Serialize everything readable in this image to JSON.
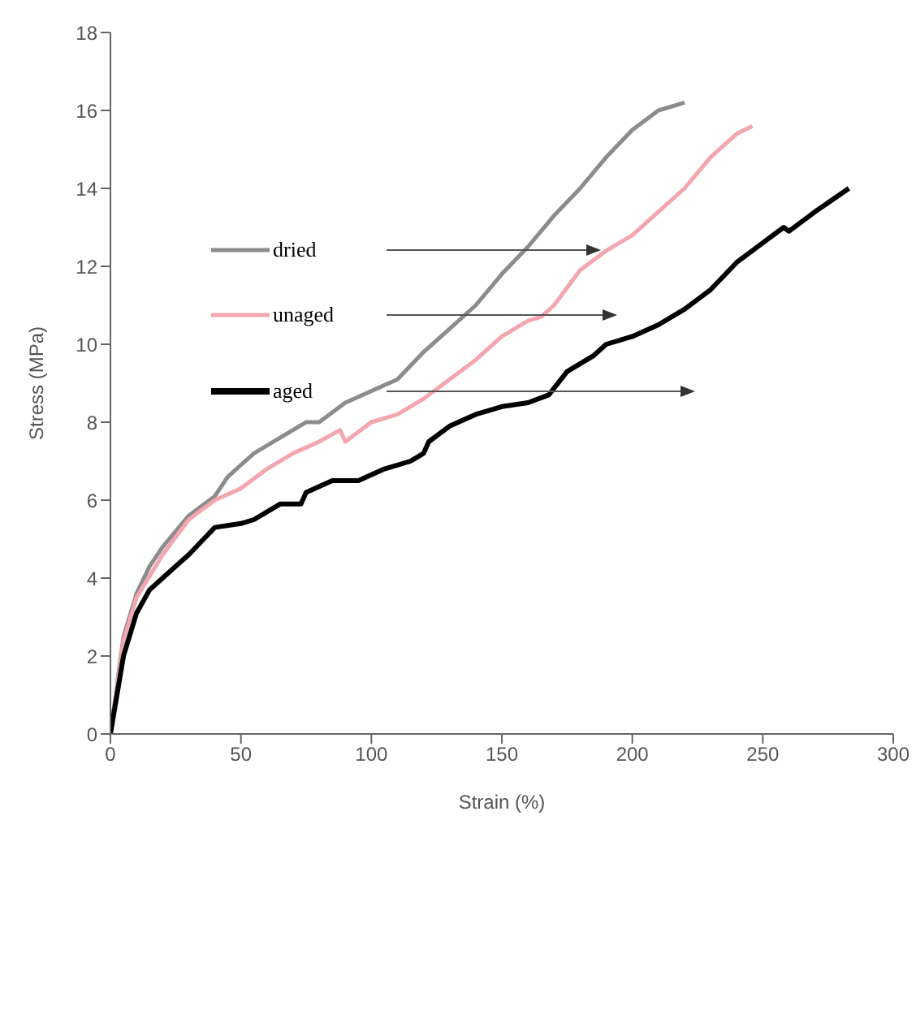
{
  "chart_data": {
    "type": "line",
    "xlabel": "Strain (%)",
    "ylabel": "Stress (MPa)",
    "xlim": [
      0,
      300
    ],
    "xticks": [
      0,
      50,
      100,
      150,
      200,
      250,
      300
    ],
    "ylim": [
      0,
      18
    ],
    "yticks": [
      0,
      2,
      4,
      6,
      8,
      10,
      12,
      14,
      16,
      18
    ],
    "grid": false,
    "legend": "top left",
    "marker": "none",
    "line_style": "solid",
    "series": [
      {
        "name": "dried",
        "color": "#8c8c8c",
        "x": [
          0,
          5,
          10,
          15,
          20,
          30,
          40,
          45,
          55,
          65,
          75,
          80,
          90,
          100,
          110,
          120,
          130,
          140,
          150,
          160,
          170,
          180,
          190,
          200,
          210,
          220
        ],
        "values": [
          0,
          2.5,
          3.6,
          4.3,
          4.8,
          5.6,
          6.1,
          6.6,
          7.2,
          7.6,
          8.0,
          8.0,
          8.5,
          8.8,
          9.1,
          9.8,
          10.4,
          11.0,
          11.8,
          12.5,
          13.3,
          14.0,
          14.8,
          15.5,
          16.0,
          16.2
        ]
      },
      {
        "name": "unaged",
        "color": "#f4a6ae",
        "x": [
          0,
          5,
          10,
          20,
          30,
          40,
          50,
          60,
          70,
          80,
          88,
          90,
          100,
          110,
          120,
          130,
          140,
          150,
          160,
          165,
          170,
          180,
          190,
          200,
          210,
          220,
          230,
          240,
          246
        ],
        "values": [
          0,
          2.4,
          3.5,
          4.6,
          5.5,
          6.0,
          6.3,
          6.8,
          7.2,
          7.5,
          7.8,
          7.5,
          8.0,
          8.2,
          8.6,
          9.1,
          9.6,
          10.2,
          10.6,
          10.7,
          11.0,
          11.9,
          12.4,
          12.8,
          13.4,
          14.0,
          14.8,
          15.4,
          15.6
        ]
      },
      {
        "name": "aged",
        "color": "#000000",
        "x": [
          0,
          5,
          10,
          15,
          20,
          25,
          30,
          40,
          50,
          55,
          65,
          73,
          75,
          85,
          95,
          105,
          115,
          120,
          122,
          130,
          140,
          150,
          160,
          168,
          175,
          185,
          190,
          200,
          210,
          220,
          230,
          240,
          250,
          258,
          260,
          270,
          283
        ],
        "values": [
          0,
          2.0,
          3.1,
          3.7,
          4.0,
          4.3,
          4.6,
          5.3,
          5.4,
          5.5,
          5.9,
          5.9,
          6.2,
          6.5,
          6.5,
          6.8,
          7.0,
          7.2,
          7.5,
          7.9,
          8.2,
          8.4,
          8.5,
          8.7,
          9.3,
          9.7,
          10.0,
          10.2,
          10.5,
          10.9,
          11.4,
          12.1,
          12.6,
          13.0,
          12.9,
          13.4,
          14.0
        ]
      }
    ]
  }
}
